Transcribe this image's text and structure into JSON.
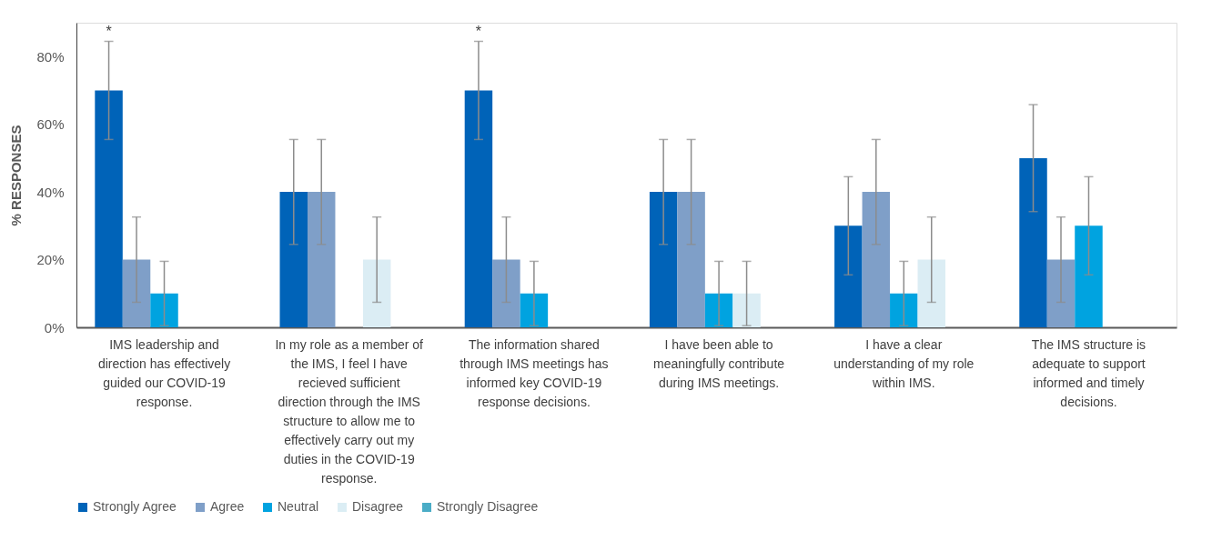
{
  "chart_data": {
    "type": "bar",
    "ylabel": "% RESPONSES",
    "categories": [
      "IMS leadership and direction has effectively guided our COVID-19 response.",
      "In my role as a member of the IMS, I feel I have recieved sufficient direction through the IMS structure to allow me to effectively carry out my duties in the COVID-19 response.",
      "The information shared through IMS meetings has informed key COVID-19 response decisions.",
      "I have been able to meaningfully contribute during IMS meetings.",
      "I have a clear understanding of my role within IMS.",
      "The IMS structure is adequate to support informed and timely decisions."
    ],
    "series": [
      {
        "name": "Strongly Agree",
        "color": "#0063b8",
        "values": [
          70,
          40,
          70,
          40,
          30,
          50
        ],
        "errors": [
          14.5,
          15.5,
          14.5,
          15.5,
          14.5,
          15.8
        ]
      },
      {
        "name": "Agree",
        "color": "#7f9fc8",
        "values": [
          20,
          40,
          20,
          40,
          40,
          20
        ],
        "errors": [
          12.6,
          15.5,
          12.6,
          15.5,
          15.5,
          12.6
        ]
      },
      {
        "name": "Neutral",
        "color": "#00a3e0",
        "values": [
          10,
          null,
          10,
          10,
          10,
          30
        ],
        "errors": [
          9.5,
          null,
          9.5,
          9.5,
          9.5,
          14.5
        ]
      },
      {
        "name": "Disagree",
        "color": "#dbedf4",
        "values": [
          null,
          20,
          null,
          10,
          20,
          null
        ],
        "errors": [
          null,
          12.6,
          null,
          9.5,
          12.6,
          null
        ]
      },
      {
        "name": "Strongly Disagree",
        "color": "#4aacc6",
        "values": [
          null,
          null,
          null,
          null,
          null,
          null
        ]
      }
    ],
    "ylim": [
      0,
      90
    ],
    "yticks": [
      {
        "value": 0,
        "label": "0%"
      },
      {
        "value": 20,
        "label": "20%"
      },
      {
        "value": 40,
        "label": "40%"
      },
      {
        "value": 60,
        "label": "60%"
      },
      {
        "value": 80,
        "label": "80%"
      }
    ],
    "annotations": [
      "*",
      "*"
    ],
    "grid": false,
    "legend": "bottom"
  }
}
